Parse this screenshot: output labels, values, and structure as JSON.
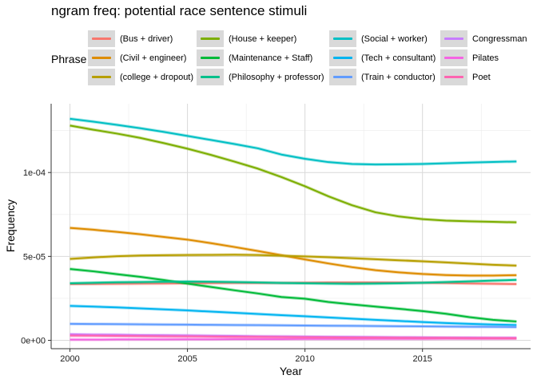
{
  "chart_data": {
    "type": "line",
    "title": "ngram freq: potential race sentence stimuli",
    "xlabel": "Year",
    "ylabel": "Frequency",
    "legend_title": "Phrase",
    "legend_position": "top",
    "xlim": [
      1999.2,
      2019.6
    ],
    "ylim": [
      -5e-06,
      0.000141
    ],
    "x_ticks": [
      2000,
      2005,
      2010,
      2015
    ],
    "x_tick_labels": [
      "2000",
      "2005",
      "2010",
      "2015"
    ],
    "y_ticks": [
      0,
      5e-05,
      0.0001
    ],
    "y_tick_labels": [
      "0e+00",
      "5e-05",
      "1e-04"
    ],
    "grid": true,
    "x": [
      2000,
      2001,
      2002,
      2003,
      2004,
      2005,
      2006,
      2007,
      2008,
      2009,
      2010,
      2011,
      2012,
      2013,
      2014,
      2015,
      2016,
      2017,
      2018,
      2019
    ],
    "series": [
      {
        "name": "(Bus + driver)",
        "color": "#F8766D",
        "values": [
          3.35e-05,
          3.36e-05,
          3.37e-05,
          3.38e-05,
          3.39e-05,
          3.4e-05,
          3.41e-05,
          3.42e-05,
          3.42e-05,
          3.42e-05,
          3.43e-05,
          3.45e-05,
          3.45e-05,
          3.45e-05,
          3.44e-05,
          3.43e-05,
          3.41e-05,
          3.39e-05,
          3.37e-05,
          3.35e-05
        ]
      },
      {
        "name": "(Civil + engineer)",
        "color": "#DE8C00",
        "values": [
          6.7e-05,
          6.59e-05,
          6.46e-05,
          6.32e-05,
          6.16e-05,
          6e-05,
          5.79e-05,
          5.56e-05,
          5.32e-05,
          5.07e-05,
          4.82e-05,
          4.58e-05,
          4.36e-05,
          4.18e-05,
          4.05e-05,
          3.95e-05,
          3.89e-05,
          3.86e-05,
          3.86e-05,
          3.88e-05
        ]
      },
      {
        "name": "(college + dropout)",
        "color": "#B79F00",
        "values": [
          4.85e-05,
          4.94e-05,
          5.01e-05,
          5.05e-05,
          5.07e-05,
          5.08e-05,
          5.09e-05,
          5.1e-05,
          5.08e-05,
          5.04e-05,
          5e-05,
          4.95e-05,
          4.89e-05,
          4.83e-05,
          4.77e-05,
          4.71e-05,
          4.64e-05,
          4.57e-05,
          4.5e-05,
          4.45e-05
        ]
      },
      {
        "name": "(House + keeper)",
        "color": "#7CAE00",
        "values": [
          0.000128,
          0.0001255,
          0.0001232,
          0.0001206,
          0.0001175,
          0.0001142,
          0.0001105,
          0.0001065,
          0.0001023,
          9.73e-05,
          9.18e-05,
          8.58e-05,
          8.05e-05,
          7.63e-05,
          7.38e-05,
          7.22e-05,
          7.13e-05,
          7.09e-05,
          7.06e-05,
          7.03e-05
        ]
      },
      {
        "name": "(Maintenance + Staff)",
        "color": "#00BA38",
        "values": [
          4.25e-05,
          4.11e-05,
          3.94e-05,
          3.78e-05,
          3.59e-05,
          3.38e-05,
          3.18e-05,
          2.98e-05,
          2.79e-05,
          2.58e-05,
          2.48e-05,
          2.28e-05,
          2.14e-05,
          2.01e-05,
          1.88e-05,
          1.74e-05,
          1.58e-05,
          1.38e-05,
          1.22e-05,
          1.12e-05
        ]
      },
      {
        "name": "(Philosophy + professor)",
        "color": "#00C08B",
        "values": [
          3.4e-05,
          3.43e-05,
          3.46e-05,
          3.47e-05,
          3.49e-05,
          3.5e-05,
          3.49e-05,
          3.47e-05,
          3.45e-05,
          3.42e-05,
          3.4e-05,
          3.38e-05,
          3.37e-05,
          3.38e-05,
          3.4e-05,
          3.43e-05,
          3.47e-05,
          3.51e-05,
          3.56e-05,
          3.6e-05
        ]
      },
      {
        "name": "(Social + worker)",
        "color": "#00BFC4",
        "values": [
          0.000132,
          0.0001303,
          0.0001284,
          0.0001264,
          0.0001242,
          0.0001218,
          0.0001194,
          0.000117,
          0.0001144,
          0.0001107,
          0.0001082,
          0.0001062,
          0.0001051,
          0.0001048,
          0.0001049,
          0.0001051,
          0.0001055,
          0.0001059,
          0.0001063,
          0.0001066
        ]
      },
      {
        "name": "(Tech + consultant)",
        "color": "#00B4F0",
        "values": [
          2.05e-05,
          2.01e-05,
          1.96e-05,
          1.9e-05,
          1.84e-05,
          1.78e-05,
          1.71e-05,
          1.64e-05,
          1.57e-05,
          1.5e-05,
          1.43e-05,
          1.36e-05,
          1.29e-05,
          1.22e-05,
          1.15e-05,
          1.09e-05,
          1.03e-05,
          9.8e-06,
          9.4e-06,
          9.1e-06
        ]
      },
      {
        "name": "(Train + conductor)",
        "color": "#619CFF",
        "values": [
          9.8e-06,
          9.7e-06,
          9.6e-06,
          9.5e-06,
          9.4e-06,
          9.3e-06,
          9.2e-06,
          9.1e-06,
          9e-06,
          8.9e-06,
          8.8e-06,
          8.7e-06,
          8.6e-06,
          8.5e-06,
          8.4e-06,
          8.3e-06,
          8.2e-06,
          8.1e-06,
          8e-06,
          7.9e-06
        ]
      },
      {
        "name": "Congressman",
        "color": "#C77CFF",
        "values": [
          3.6e-06,
          3.4e-06,
          3.3e-06,
          3.1e-06,
          3e-06,
          2.9e-06,
          2.7e-06,
          2.6e-06,
          2.4e-06,
          2.3e-06,
          2.2e-06,
          2.1e-06,
          2e-06,
          1.9e-06,
          1.8e-06,
          1.7e-06,
          1.6e-06,
          1.6e-06,
          1.5e-06,
          1.5e-06
        ]
      },
      {
        "name": "Pilates",
        "color": "#F564E3",
        "values": [
          4e-07,
          4e-07,
          5e-07,
          5e-07,
          5e-07,
          6e-07,
          6e-07,
          7e-07,
          7e-07,
          7e-07,
          8e-07,
          8e-07,
          8e-07,
          9e-07,
          9e-07,
          9e-07,
          1e-06,
          1e-06,
          1e-06,
          1.1e-06
        ]
      },
      {
        "name": "Poet",
        "color": "#FF64B0",
        "values": [
          2.8e-06,
          2.7e-06,
          2.6e-06,
          2.5e-06,
          2.4e-06,
          2.3e-06,
          2.2e-06,
          2.1e-06,
          2e-06,
          1.9e-06,
          1.8e-06,
          1.7e-06,
          1.6e-06,
          1.6e-06,
          1.5e-06,
          1.4e-06,
          1.4e-06,
          1.3e-06,
          1.3e-06,
          1.2e-06
        ]
      }
    ]
  }
}
